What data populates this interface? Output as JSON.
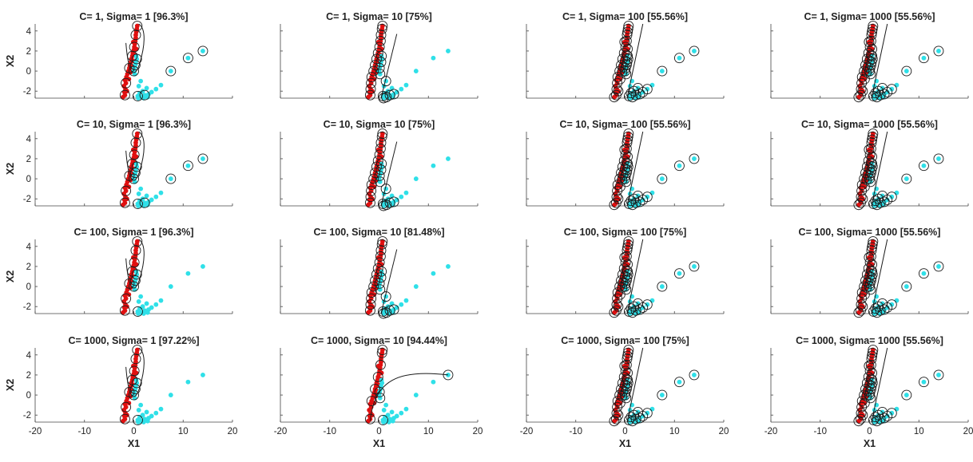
{
  "figure": {
    "xlabel": "X1",
    "ylabel": "X2",
    "colors": {
      "class_pos": "#e01010",
      "class_neg": "#2fe0e8",
      "support_vector": "#1a1a1a",
      "boundary": "#1a1a1a",
      "axis": "#444444"
    }
  },
  "chart_data": [
    {
      "type": "scatter",
      "title": "C= 1, Sigma= 1 [96.3%]",
      "C": 1,
      "sigma": 1,
      "accuracy": "96.3%",
      "xlim": [
        -20,
        20
      ],
      "ylim": [
        -2.7,
        4.7
      ],
      "x_ticks": [
        -20,
        -10,
        0,
        10,
        20
      ],
      "y_ticks": [
        -2,
        0,
        2,
        4
      ],
      "grid": false
    },
    {
      "type": "scatter",
      "title": "C= 1, Sigma= 10 [75%]",
      "C": 1,
      "sigma": 10,
      "accuracy": "75%",
      "xlim": [
        -20,
        20
      ],
      "ylim": [
        -2.7,
        4.7
      ],
      "x_ticks": [
        -20,
        -10,
        0,
        10,
        20
      ],
      "y_ticks": [
        -2,
        0,
        2,
        4
      ],
      "grid": false
    },
    {
      "type": "scatter",
      "title": "C= 1, Sigma= 100 [55.56%]",
      "C": 1,
      "sigma": 100,
      "accuracy": "55.56%",
      "xlim": [
        -20,
        20
      ],
      "ylim": [
        -2.7,
        4.7
      ],
      "x_ticks": [
        -20,
        -10,
        0,
        10,
        20
      ],
      "y_ticks": [
        -2,
        0,
        2,
        4
      ],
      "grid": false
    },
    {
      "type": "scatter",
      "title": "C= 1, Sigma= 1000 [55.56%]",
      "C": 1,
      "sigma": 1000,
      "accuracy": "55.56%",
      "xlim": [
        -20,
        20
      ],
      "ylim": [
        -2.7,
        4.7
      ],
      "x_ticks": [
        -20,
        -10,
        0,
        10,
        20
      ],
      "y_ticks": [
        -2,
        0,
        2,
        4
      ],
      "grid": false
    },
    {
      "type": "scatter",
      "title": "C= 10, Sigma= 1 [96.3%]",
      "C": 10,
      "sigma": 1,
      "accuracy": "96.3%",
      "xlim": [
        -20,
        20
      ],
      "ylim": [
        -2.7,
        4.7
      ],
      "x_ticks": [
        -20,
        -10,
        0,
        10,
        20
      ],
      "y_ticks": [
        -2,
        0,
        2,
        4
      ],
      "grid": false
    },
    {
      "type": "scatter",
      "title": "C= 10, Sigma= 10 [75%]",
      "C": 10,
      "sigma": 10,
      "accuracy": "75%",
      "xlim": [
        -20,
        20
      ],
      "ylim": [
        -2.7,
        4.7
      ],
      "x_ticks": [
        -20,
        -10,
        0,
        10,
        20
      ],
      "y_ticks": [
        -2,
        0,
        2,
        4
      ],
      "grid": false
    },
    {
      "type": "scatter",
      "title": "C= 10, Sigma= 100 [55.56%]",
      "C": 10,
      "sigma": 100,
      "accuracy": "55.56%",
      "xlim": [
        -20,
        20
      ],
      "ylim": [
        -2.7,
        4.7
      ],
      "x_ticks": [
        -20,
        -10,
        0,
        10,
        20
      ],
      "y_ticks": [
        -2,
        0,
        2,
        4
      ],
      "grid": false
    },
    {
      "type": "scatter",
      "title": "C= 10, Sigma= 1000 [55.56%]",
      "C": 10,
      "sigma": 1000,
      "accuracy": "55.56%",
      "xlim": [
        -20,
        20
      ],
      "ylim": [
        -2.7,
        4.7
      ],
      "x_ticks": [
        -20,
        -10,
        0,
        10,
        20
      ],
      "y_ticks": [
        -2,
        0,
        2,
        4
      ],
      "grid": false
    },
    {
      "type": "scatter",
      "title": "C= 100, Sigma= 1 [96.3%]",
      "C": 100,
      "sigma": 1,
      "accuracy": "96.3%",
      "xlim": [
        -20,
        20
      ],
      "ylim": [
        -2.7,
        4.7
      ],
      "x_ticks": [
        -20,
        -10,
        0,
        10,
        20
      ],
      "y_ticks": [
        -2,
        0,
        2,
        4
      ],
      "grid": false
    },
    {
      "type": "scatter",
      "title": "C= 100, Sigma= 10 [81.48%]",
      "C": 100,
      "sigma": 10,
      "accuracy": "81.48%",
      "xlim": [
        -20,
        20
      ],
      "ylim": [
        -2.7,
        4.7
      ],
      "x_ticks": [
        -20,
        -10,
        0,
        10,
        20
      ],
      "y_ticks": [
        -2,
        0,
        2,
        4
      ],
      "grid": false
    },
    {
      "type": "scatter",
      "title": "C= 100, Sigma= 100 [75%]",
      "C": 100,
      "sigma": 100,
      "accuracy": "75%",
      "xlim": [
        -20,
        20
      ],
      "ylim": [
        -2.7,
        4.7
      ],
      "x_ticks": [
        -20,
        -10,
        0,
        10,
        20
      ],
      "y_ticks": [
        -2,
        0,
        2,
        4
      ],
      "grid": false
    },
    {
      "type": "scatter",
      "title": "C= 100, Sigma= 1000 [55.56%]",
      "C": 100,
      "sigma": 1000,
      "accuracy": "55.56%",
      "xlim": [
        -20,
        20
      ],
      "ylim": [
        -2.7,
        4.7
      ],
      "x_ticks": [
        -20,
        -10,
        0,
        10,
        20
      ],
      "y_ticks": [
        -2,
        0,
        2,
        4
      ],
      "grid": false
    },
    {
      "type": "scatter",
      "title": "C= 1000, Sigma= 1 [97.22%]",
      "C": 1000,
      "sigma": 1,
      "accuracy": "97.22%",
      "xlim": [
        -20,
        20
      ],
      "ylim": [
        -2.7,
        4.7
      ],
      "x_ticks": [
        -20,
        -10,
        0,
        10,
        20
      ],
      "y_ticks": [
        -2,
        0,
        2,
        4
      ],
      "grid": false
    },
    {
      "type": "scatter",
      "title": "C= 1000, Sigma= 10 [94.44%]",
      "C": 1000,
      "sigma": 10,
      "accuracy": "94.44%",
      "xlim": [
        -20,
        20
      ],
      "ylim": [
        -2.7,
        4.7
      ],
      "x_ticks": [
        -20,
        -10,
        0,
        10,
        20
      ],
      "y_ticks": [
        -2,
        0,
        2,
        4
      ],
      "grid": false
    },
    {
      "type": "scatter",
      "title": "C= 1000, Sigma= 100 [75%]",
      "C": 1000,
      "sigma": 100,
      "accuracy": "75%",
      "xlim": [
        -20,
        20
      ],
      "ylim": [
        -2.7,
        4.7
      ],
      "x_ticks": [
        -20,
        -10,
        0,
        10,
        20
      ],
      "y_ticks": [
        -2,
        0,
        2,
        4
      ],
      "grid": false
    },
    {
      "type": "scatter",
      "title": "C= 1000, Sigma= 1000 [55.56%]",
      "C": 1000,
      "sigma": 1000,
      "accuracy": "55.56%",
      "xlim": [
        -20,
        20
      ],
      "ylim": [
        -2.7,
        4.7
      ],
      "x_ticks": [
        -20,
        -10,
        0,
        10,
        20
      ],
      "y_ticks": [
        -2,
        0,
        2,
        4
      ],
      "grid": false
    }
  ],
  "shared_points": {
    "class_pos": [
      [
        -1.8,
        -2.4
      ],
      [
        -1.9,
        -2.1
      ],
      [
        -1.7,
        -1.8
      ],
      [
        -2.0,
        -1.5
      ],
      [
        -1.6,
        -1.2
      ],
      [
        -1.8,
        -0.9
      ],
      [
        -1.5,
        -0.6
      ],
      [
        -1.3,
        -0.3
      ],
      [
        -1.1,
        0.0
      ],
      [
        -0.9,
        0.3
      ],
      [
        -0.8,
        0.6
      ],
      [
        -0.6,
        0.9
      ],
      [
        -0.5,
        1.2
      ],
      [
        -0.3,
        1.5
      ],
      [
        -0.2,
        1.8
      ],
      [
        0.0,
        2.1
      ],
      [
        0.1,
        2.4
      ],
      [
        0.2,
        2.7
      ],
      [
        0.3,
        3.0
      ],
      [
        0.4,
        3.3
      ],
      [
        0.4,
        3.6
      ],
      [
        0.5,
        3.9
      ],
      [
        0.6,
        4.2
      ],
      [
        0.7,
        4.5
      ],
      [
        -2.2,
        -2.6
      ],
      [
        -1.4,
        -2.0
      ],
      [
        -1.0,
        -0.8
      ],
      [
        -0.4,
        0.4
      ],
      [
        0.0,
        1.0
      ],
      [
        0.3,
        1.6
      ],
      [
        0.5,
        2.2
      ],
      [
        -0.1,
        2.9
      ],
      [
        -0.6,
        -0.1
      ]
    ],
    "class_neg": [
      [
        0.2,
        -0.3
      ],
      [
        0.0,
        0.0
      ],
      [
        0.1,
        0.3
      ],
      [
        0.3,
        0.6
      ],
      [
        0.4,
        0.9
      ],
      [
        0.6,
        1.2
      ],
      [
        0.5,
        1.5
      ],
      [
        0.8,
        -2.5
      ],
      [
        1.2,
        -2.2
      ],
      [
        1.5,
        -2.6
      ],
      [
        1.8,
        -2.0
      ],
      [
        2.2,
        -2.4
      ],
      [
        2.6,
        -1.7
      ],
      [
        3.0,
        -2.3
      ],
      [
        3.6,
        -2.1
      ],
      [
        4.5,
        -1.8
      ],
      [
        5.5,
        -1.4
      ],
      [
        7.5,
        0.0
      ],
      [
        11.0,
        1.3
      ],
      [
        14.0,
        2.0
      ],
      [
        1.0,
        -1.5
      ],
      [
        1.4,
        -1.0
      ],
      [
        0.9,
        -2.7
      ],
      [
        2.0,
        -2.7
      ],
      [
        2.8,
        -2.6
      ]
    ]
  }
}
